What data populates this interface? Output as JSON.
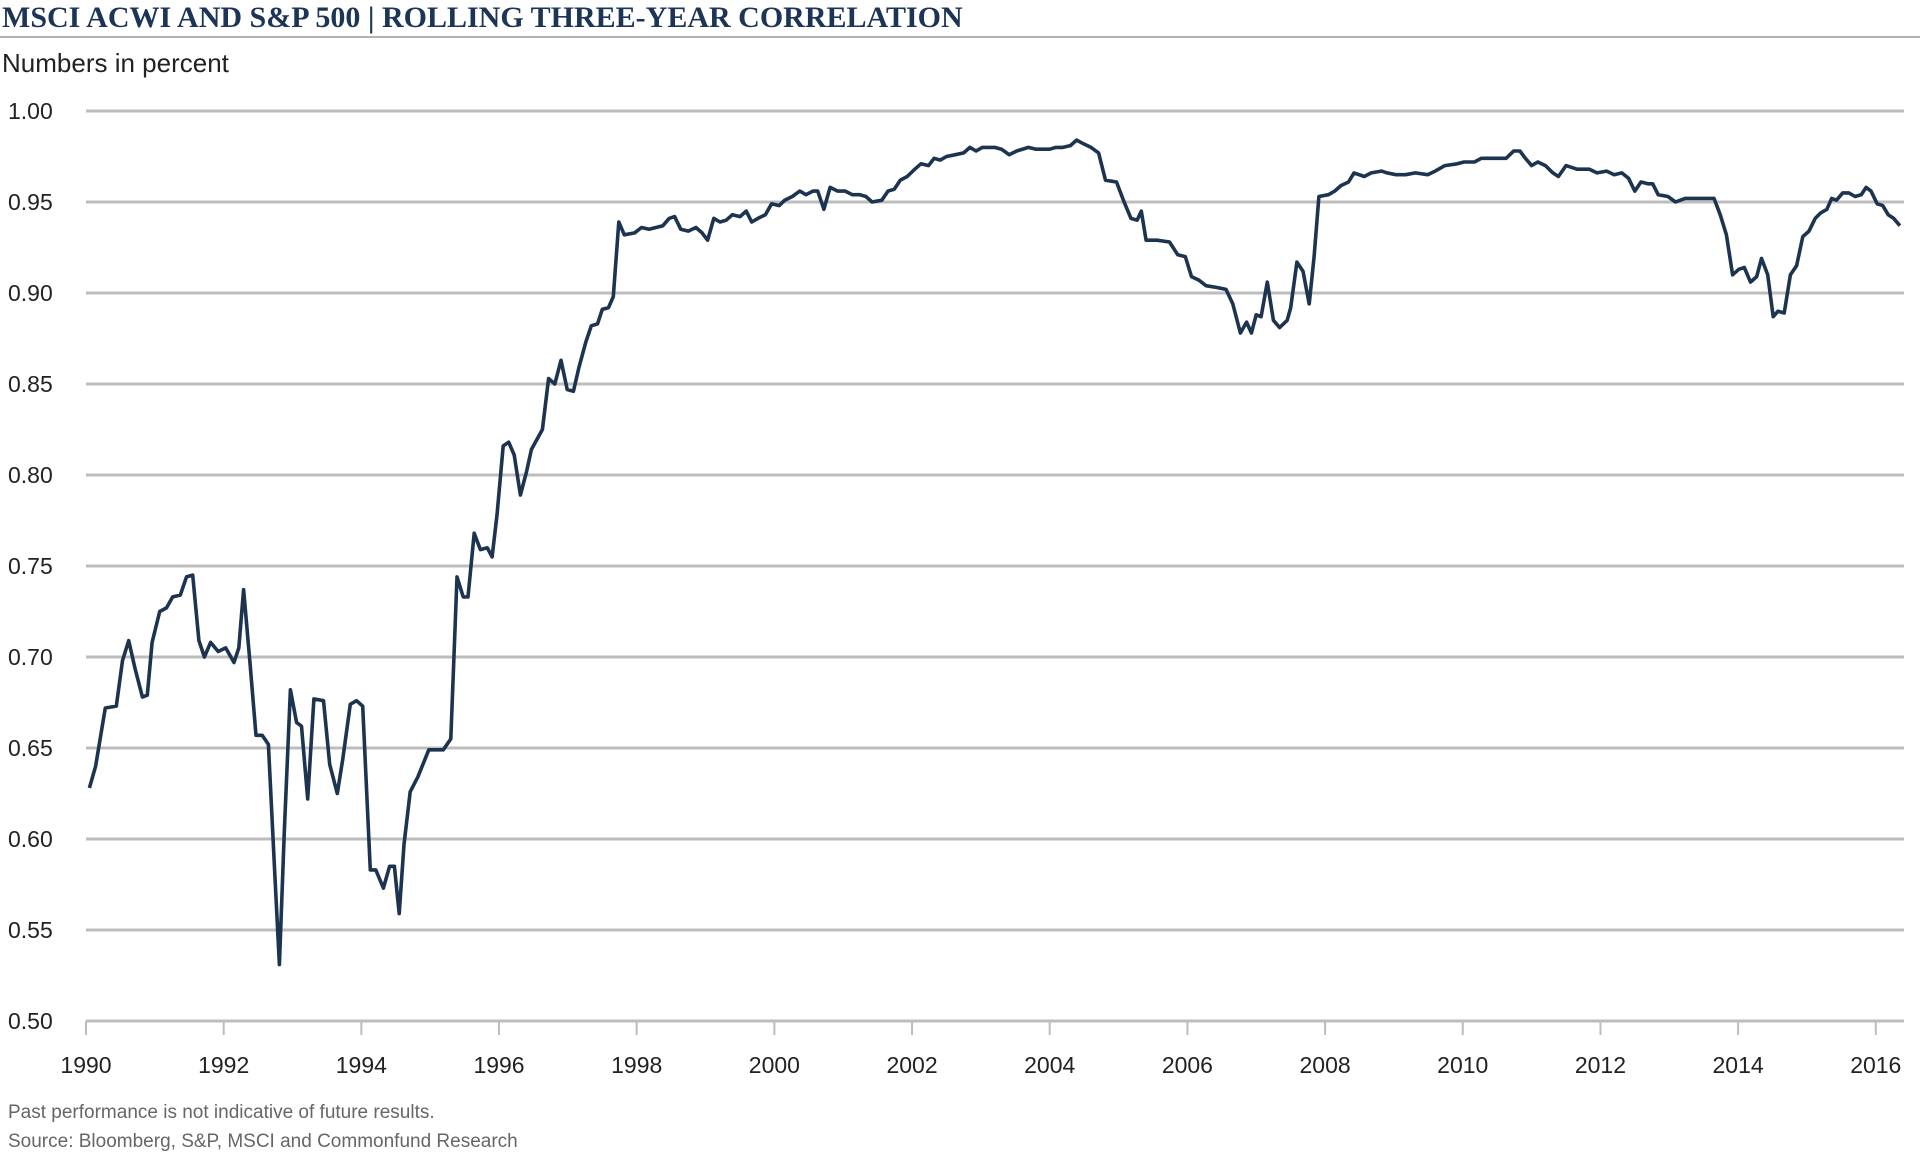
{
  "chart_data": {
    "type": "line",
    "title": "MSCI ACWI AND S&P 500 | ROLLING THREE-YEAR CORRELATION",
    "subtitle": "Numbers in percent",
    "notes": [
      "Past performance is not indicative of future results.",
      "Source: Bloomberg, S&P, MSCI and Commonfund Research"
    ],
    "color": "#1c3450",
    "xlim": [
      1990,
      2016.41
    ],
    "xticks": [
      1990,
      1992,
      1994,
      1996,
      1998,
      2000,
      2002,
      2004,
      2006,
      2008,
      2010,
      2012,
      2014,
      2016
    ],
    "ylim": [
      0.5,
      1.0
    ],
    "yticks": [
      {
        "value": 0.5,
        "label": "0.50"
      },
      0.55,
      {
        "value": 0.6,
        "label": "0.60"
      },
      0.65,
      {
        "value": 0.7,
        "label": "0.70"
      },
      0.75,
      {
        "value": 0.8,
        "label": "0.80"
      },
      0.85,
      {
        "value": 0.9,
        "label": "0.90"
      },
      0.95,
      {
        "value": 1.0,
        "label": "1.00"
      }
    ],
    "grid": true,
    "x": [
      1990.05,
      1990.14,
      1990.28,
      1990.44,
      1990.53,
      1990.62,
      1990.71,
      1990.82,
      1990.89,
      1990.96,
      1991.07,
      1991.17,
      1991.26,
      1991.37,
      1991.46,
      1991.55,
      1991.64,
      1991.72,
      1991.81,
      1991.92,
      1992.03,
      1992.15,
      1992.22,
      1992.29,
      1992.38,
      1992.47,
      1992.56,
      1992.65,
      1992.74,
      1992.81,
      1992.88,
      1992.97,
      1993.06,
      1993.13,
      1993.22,
      1993.31,
      1993.45,
      1993.54,
      1993.65,
      1993.73,
      1993.84,
      1993.93,
      1994.02,
      1994.13,
      1994.21,
      1994.32,
      1994.41,
      1994.48,
      1994.55,
      1994.62,
      1994.71,
      1994.82,
      1994.98,
      1995.09,
      1995.19,
      1995.3,
      1995.39,
      1995.48,
      1995.55,
      1995.64,
      1995.73,
      1995.83,
      1995.9,
      1995.97,
      1996.06,
      1996.14,
      1996.22,
      1996.31,
      1996.4,
      1996.47,
      1996.63,
      1996.72,
      1996.81,
      1996.9,
      1996.99,
      1997.08,
      1997.16,
      1997.26,
      1997.34,
      1997.43,
      1997.5,
      1997.59,
      1997.66,
      1997.74,
      1997.82,
      1997.97,
      1998.07,
      1998.18,
      1998.38,
      1998.47,
      1998.55,
      1998.64,
      1998.75,
      1998.86,
      1998.95,
      1999.03,
      1999.12,
      1999.21,
      1999.3,
      1999.39,
      1999.5,
      1999.59,
      1999.67,
      1999.76,
      1999.87,
      1999.96,
      2000.07,
      2000.15,
      2000.26,
      2000.37,
      2000.46,
      2000.56,
      2000.63,
      2000.72,
      2000.81,
      2000.92,
      2001.03,
      2001.13,
      2001.24,
      2001.33,
      2001.42,
      2001.56,
      2001.65,
      2001.74,
      2001.83,
      2001.93,
      2002.04,
      2002.13,
      2002.24,
      2002.32,
      2002.41,
      2002.5,
      2002.63,
      2002.75,
      2002.84,
      2002.93,
      2003.02,
      2003.2,
      2003.3,
      2003.41,
      2003.52,
      2003.69,
      2003.8,
      2004.0,
      2004.09,
      2004.19,
      2004.3,
      2004.39,
      2004.49,
      2004.6,
      2004.71,
      2004.81,
      2004.97,
      2005.08,
      2005.18,
      2005.27,
      2005.33,
      2005.4,
      2005.56,
      2005.74,
      2005.86,
      2005.97,
      2006.06,
      2006.17,
      2006.27,
      2006.43,
      2006.56,
      2006.66,
      2006.77,
      2006.86,
      2006.93,
      2007.0,
      2007.07,
      2007.16,
      2007.25,
      2007.34,
      2007.45,
      2007.5,
      2007.59,
      2007.68,
      2007.77,
      2007.84,
      2007.91,
      2008.05,
      2008.14,
      2008.23,
      2008.34,
      2008.42,
      2008.57,
      2008.67,
      2008.82,
      2008.9,
      2009.03,
      2009.17,
      2009.31,
      2009.49,
      2009.6,
      2009.74,
      2009.92,
      2010.02,
      2010.17,
      2010.27,
      2010.45,
      2010.63,
      2010.74,
      2010.83,
      2010.91,
      2011.0,
      2011.09,
      2011.2,
      2011.31,
      2011.39,
      2011.5,
      2011.66,
      2011.84,
      2011.95,
      2012.09,
      2012.2,
      2012.31,
      2012.41,
      2012.5,
      2012.59,
      2012.69,
      2012.76,
      2012.84,
      2012.98,
      2013.09,
      2013.23,
      2013.37,
      2013.51,
      2013.65,
      2013.74,
      2013.83,
      2013.92,
      2014.01,
      2014.09,
      2014.18,
      2014.27,
      2014.34,
      2014.43,
      2014.51,
      2014.58,
      2014.67,
      2014.76,
      2014.85,
      2014.94,
      2015.03,
      2015.12,
      2015.2,
      2015.29,
      2015.36,
      2015.43,
      2015.52,
      2015.61,
      2015.7,
      2015.79,
      2015.86,
      2015.93,
      2016.02,
      2016.1,
      2016.18,
      2016.26,
      2016.35
    ],
    "values": [
      0.628,
      0.64,
      0.672,
      0.673,
      0.698,
      0.709,
      0.694,
      0.678,
      0.679,
      0.708,
      0.725,
      0.727,
      0.733,
      0.734,
      0.744,
      0.745,
      0.709,
      0.7,
      0.708,
      0.703,
      0.705,
      0.697,
      0.705,
      0.737,
      0.698,
      0.657,
      0.657,
      0.652,
      0.583,
      0.531,
      0.604,
      0.682,
      0.664,
      0.662,
      0.622,
      0.677,
      0.676,
      0.641,
      0.625,
      0.644,
      0.674,
      0.676,
      0.673,
      0.583,
      0.583,
      0.573,
      0.585,
      0.585,
      0.559,
      0.597,
      0.626,
      0.634,
      0.649,
      0.649,
      0.649,
      0.655,
      0.744,
      0.733,
      0.733,
      0.768,
      0.759,
      0.76,
      0.755,
      0.778,
      0.816,
      0.818,
      0.811,
      0.789,
      0.802,
      0.814,
      0.825,
      0.853,
      0.85,
      0.863,
      0.847,
      0.846,
      0.859,
      0.873,
      0.882,
      0.883,
      0.891,
      0.892,
      0.898,
      0.939,
      0.932,
      0.933,
      0.936,
      0.935,
      0.937,
      0.941,
      0.942,
      0.935,
      0.934,
      0.936,
      0.933,
      0.929,
      0.941,
      0.939,
      0.94,
      0.943,
      0.942,
      0.945,
      0.939,
      0.941,
      0.943,
      0.949,
      0.948,
      0.951,
      0.953,
      0.956,
      0.954,
      0.956,
      0.956,
      0.946,
      0.958,
      0.956,
      0.956,
      0.954,
      0.954,
      0.953,
      0.95,
      0.951,
      0.956,
      0.957,
      0.962,
      0.964,
      0.968,
      0.971,
      0.97,
      0.974,
      0.973,
      0.975,
      0.976,
      0.977,
      0.98,
      0.978,
      0.98,
      0.98,
      0.979,
      0.976,
      0.978,
      0.98,
      0.979,
      0.979,
      0.98,
      0.98,
      0.981,
      0.984,
      0.982,
      0.98,
      0.977,
      0.962,
      0.961,
      0.95,
      0.941,
      0.94,
      0.945,
      0.929,
      0.929,
      0.928,
      0.921,
      0.92,
      0.909,
      0.907,
      0.904,
      0.903,
      0.902,
      0.894,
      0.878,
      0.884,
      0.878,
      0.888,
      0.887,
      0.906,
      0.885,
      0.881,
      0.885,
      0.892,
      0.917,
      0.912,
      0.894,
      0.92,
      0.953,
      0.954,
      0.956,
      0.959,
      0.961,
      0.966,
      0.964,
      0.966,
      0.967,
      0.966,
      0.965,
      0.965,
      0.966,
      0.965,
      0.967,
      0.97,
      0.971,
      0.972,
      0.972,
      0.974,
      0.974,
      0.974,
      0.978,
      0.978,
      0.974,
      0.97,
      0.972,
      0.97,
      0.966,
      0.964,
      0.97,
      0.968,
      0.968,
      0.966,
      0.967,
      0.965,
      0.966,
      0.963,
      0.956,
      0.961,
      0.96,
      0.96,
      0.954,
      0.953,
      0.95,
      0.952,
      0.952,
      0.952,
      0.952,
      0.943,
      0.932,
      0.91,
      0.913,
      0.914,
      0.906,
      0.909,
      0.919,
      0.91,
      0.887,
      0.89,
      0.889,
      0.91,
      0.915,
      0.931,
      0.934,
      0.941,
      0.944,
      0.946,
      0.952,
      0.951,
      0.955,
      0.955,
      0.953,
      0.954,
      0.958,
      0.956,
      0.949,
      0.948,
      0.943,
      0.941,
      0.937
    ]
  }
}
